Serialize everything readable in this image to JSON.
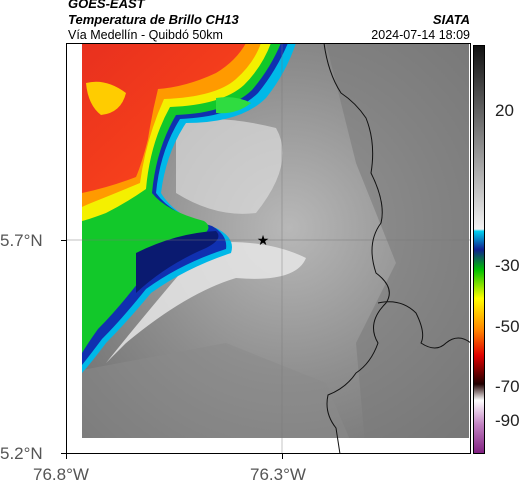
{
  "header": {
    "source": "GOES-EAST",
    "product": "Temperatura de Brillo CH13",
    "region": "Vía Medellín - Quibdó 50km",
    "org": "SIATA",
    "timestamp": "2024-07-14 18:09"
  },
  "axes": {
    "lat_ticks": [
      "5.7°N",
      "5.2°N"
    ],
    "lon_ticks": [
      "76.8°W",
      "76.3°W"
    ]
  },
  "colorbar": {
    "ticks": [
      "20",
      "-30",
      "-50",
      "-70",
      "-90"
    ],
    "units": ""
  },
  "marker": {
    "symbol": "star"
  }
}
